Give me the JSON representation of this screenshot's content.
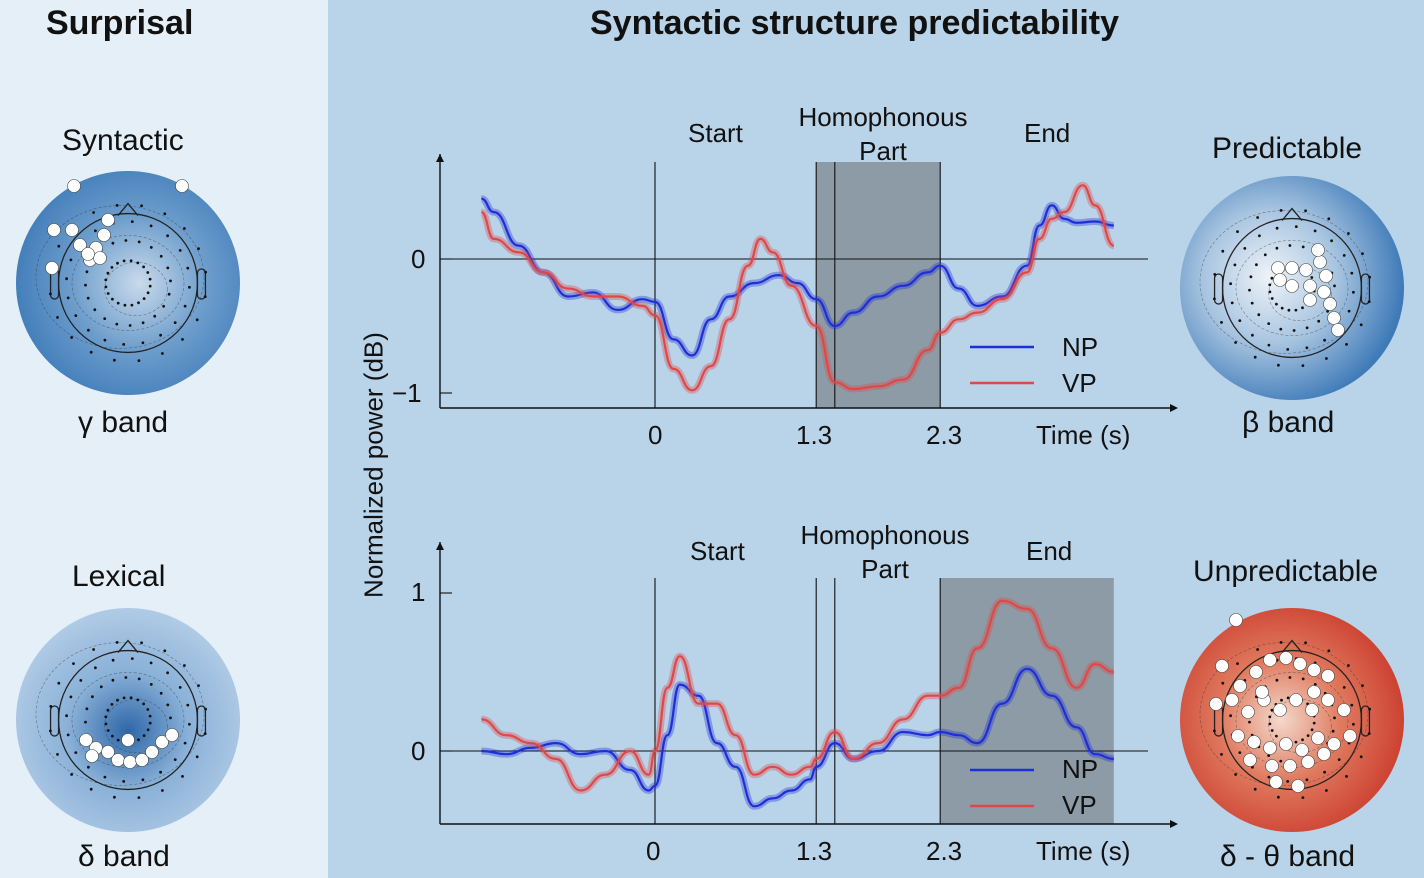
{
  "left": {
    "heading": "Surprisal",
    "maps": [
      {
        "title": "Syntactic",
        "band": "γ band"
      },
      {
        "title": "Lexical",
        "band": "δ band"
      }
    ]
  },
  "main": {
    "heading": "Syntactic structure predictability",
    "ylabel": "Normalized power (dB)"
  },
  "right": {
    "maps": [
      {
        "title": "Predictable",
        "band": "β band"
      },
      {
        "title": "Unpredictable",
        "band": "δ - θ band"
      }
    ]
  },
  "colors": {
    "left_bg": "#e4eff8",
    "right_bg": "#b9d3e8",
    "NP": "#1f2fd6",
    "VP": "#e04848",
    "shade": "#8d9ba6"
  },
  "chart_data": [
    {
      "type": "line",
      "xlabel": "Time (s)",
      "ylabel": "Normalized power (dB)",
      "xticks": [
        "0",
        "1.3",
        "2.3"
      ],
      "yticks": [
        "0",
        "−1"
      ],
      "phase_labels": {
        "start": "Start",
        "homophonous": "Homophonous Part",
        "end": "End"
      },
      "shaded_window": [
        1.3,
        2.3
      ],
      "legend_position": "bottom-right",
      "series": [
        {
          "name": "NP",
          "x": [
            -1.4,
            -1.3,
            -1.1,
            -0.9,
            -0.7,
            -0.5,
            -0.3,
            -0.1,
            0.0,
            0.15,
            0.3,
            0.45,
            0.6,
            0.8,
            1.0,
            1.15,
            1.3,
            1.45,
            1.6,
            1.8,
            2.0,
            2.2,
            2.3,
            2.45,
            2.6,
            2.8,
            3.0,
            3.1,
            3.2,
            3.3,
            3.4,
            3.55,
            3.7
          ],
          "y": [
            0.45,
            0.35,
            0.1,
            -0.1,
            -0.28,
            -0.25,
            -0.38,
            -0.3,
            -0.32,
            -0.6,
            -0.72,
            -0.45,
            -0.28,
            -0.18,
            -0.12,
            -0.18,
            -0.3,
            -0.5,
            -0.4,
            -0.28,
            -0.2,
            -0.1,
            -0.05,
            -0.22,
            -0.35,
            -0.28,
            -0.05,
            0.25,
            0.4,
            0.3,
            0.27,
            0.28,
            0.25
          ]
        },
        {
          "name": "VP",
          "x": [
            -1.4,
            -1.3,
            -1.1,
            -0.9,
            -0.7,
            -0.5,
            -0.3,
            -0.1,
            0.0,
            0.15,
            0.3,
            0.45,
            0.6,
            0.75,
            0.85,
            0.95,
            1.1,
            1.3,
            1.45,
            1.6,
            1.8,
            2.0,
            2.2,
            2.3,
            2.45,
            2.6,
            2.8,
            3.0,
            3.1,
            3.2,
            3.3,
            3.45,
            3.55,
            3.7
          ],
          "y": [
            0.35,
            0.15,
            0.05,
            -0.1,
            -0.22,
            -0.28,
            -0.28,
            -0.35,
            -0.42,
            -0.82,
            -0.98,
            -0.8,
            -0.45,
            -0.05,
            0.15,
            0.05,
            -0.2,
            -0.5,
            -0.92,
            -0.97,
            -0.95,
            -0.9,
            -0.68,
            -0.55,
            -0.45,
            -0.4,
            -0.3,
            -0.1,
            0.15,
            0.3,
            0.35,
            0.55,
            0.4,
            0.1
          ]
        }
      ]
    },
    {
      "type": "line",
      "xlabel": "Time (s)",
      "ylabel": "Normalized power (dB)",
      "xticks": [
        "0",
        "1.3",
        "2.3"
      ],
      "yticks": [
        "1",
        "0"
      ],
      "phase_labels": {
        "start": "Start",
        "homophonous": "Homophonous Part",
        "end": "End"
      },
      "shaded_window": [
        2.3,
        3.7
      ],
      "legend_position": "bottom-right",
      "series": [
        {
          "name": "NP",
          "x": [
            -1.4,
            -1.2,
            -1.0,
            -0.8,
            -0.6,
            -0.4,
            -0.2,
            -0.05,
            0.0,
            0.1,
            0.2,
            0.35,
            0.5,
            0.65,
            0.8,
            0.95,
            1.1,
            1.25,
            1.3,
            1.45,
            1.6,
            1.8,
            2.0,
            2.2,
            2.3,
            2.45,
            2.6,
            2.8,
            3.0,
            3.2,
            3.4,
            3.55,
            3.7
          ],
          "y": [
            0.0,
            -0.02,
            0.02,
            0.05,
            -0.02,
            0.0,
            -0.12,
            -0.25,
            -0.22,
            0.1,
            0.42,
            0.35,
            0.05,
            -0.1,
            -0.35,
            -0.3,
            -0.25,
            -0.18,
            -0.1,
            0.05,
            -0.05,
            0.0,
            0.12,
            0.1,
            0.12,
            0.1,
            0.05,
            0.3,
            0.52,
            0.35,
            0.15,
            -0.02,
            -0.05
          ]
        },
        {
          "name": "VP",
          "x": [
            -1.4,
            -1.2,
            -1.0,
            -0.8,
            -0.6,
            -0.4,
            -0.2,
            -0.05,
            0.0,
            0.1,
            0.2,
            0.35,
            0.5,
            0.65,
            0.8,
            0.95,
            1.1,
            1.25,
            1.3,
            1.45,
            1.6,
            1.8,
            2.0,
            2.2,
            2.3,
            2.45,
            2.6,
            2.8,
            3.0,
            3.2,
            3.4,
            3.55,
            3.7
          ],
          "y": [
            0.2,
            0.1,
            0.05,
            -0.05,
            -0.25,
            -0.15,
            0.0,
            -0.15,
            0.0,
            0.4,
            0.6,
            0.3,
            0.3,
            0.1,
            -0.15,
            -0.1,
            -0.15,
            -0.1,
            -0.05,
            0.12,
            -0.05,
            0.05,
            0.2,
            0.35,
            0.35,
            0.4,
            0.65,
            0.95,
            0.9,
            0.65,
            0.4,
            0.55,
            0.5
          ]
        }
      ]
    }
  ]
}
